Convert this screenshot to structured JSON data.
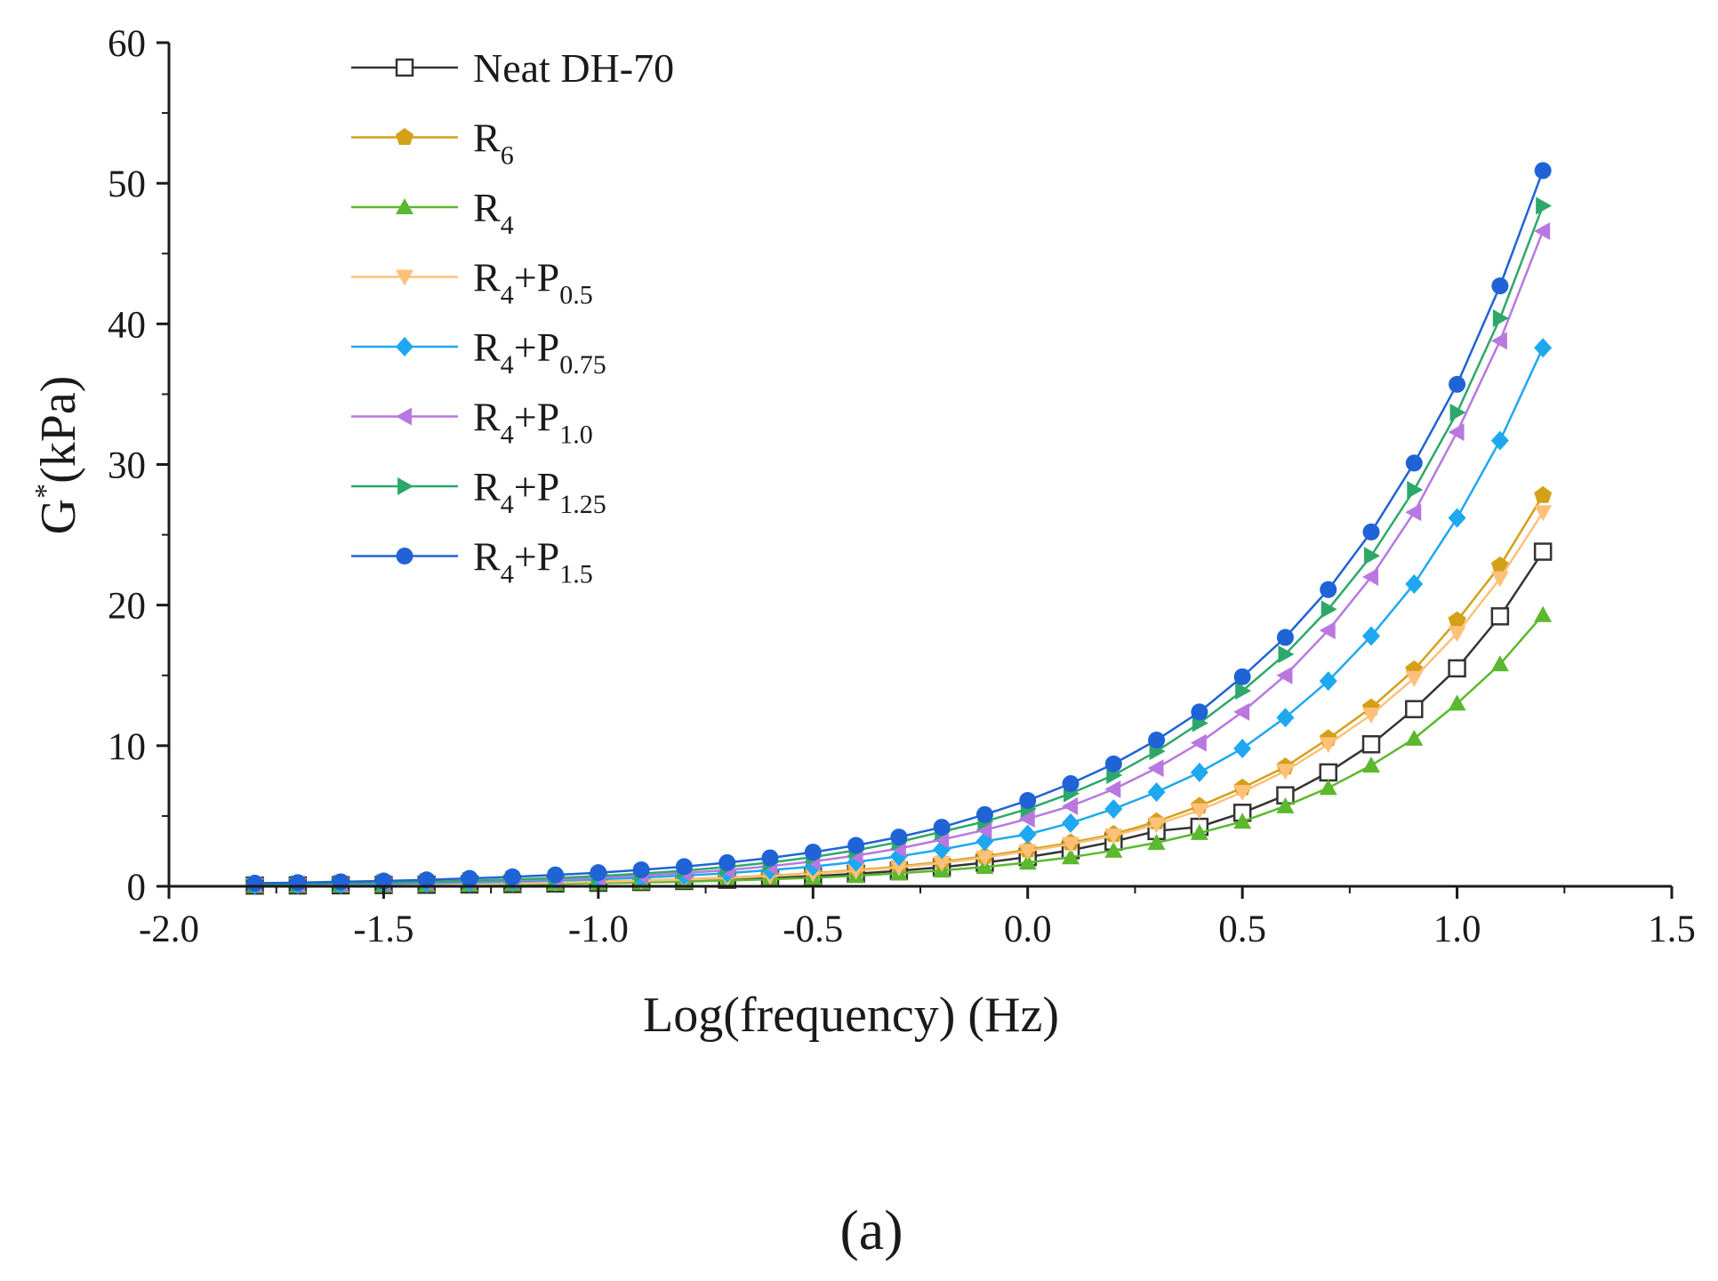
{
  "chart_data": {
    "type": "line",
    "xlabel": "Log(frequency) (Hz)",
    "ylabel": "G* (kPa)",
    "ylabel_parts": {
      "base": "G",
      "sup": "*",
      "unit": "(kPa)"
    },
    "xlim": [
      -2.0,
      1.5
    ],
    "ylim": [
      0,
      60
    ],
    "x_ticks": [
      -2.0,
      -1.5,
      -1.0,
      -0.5,
      0.0,
      0.5,
      1.0,
      1.5
    ],
    "x_tick_labels": [
      "-2.0",
      "-1.5",
      "-1.0",
      "-0.5",
      "0.0",
      "0.5",
      "1.0",
      "1.5"
    ],
    "y_ticks": [
      0,
      10,
      20,
      30,
      40,
      50,
      60
    ],
    "y_tick_labels": [
      "0",
      "10",
      "20",
      "30",
      "40",
      "50",
      "60"
    ],
    "grid": false,
    "legend_position": "top-left",
    "panel_label": "(a)",
    "x": [
      -1.8,
      -1.7,
      -1.6,
      -1.5,
      -1.4,
      -1.3,
      -1.2,
      -1.1,
      -1.0,
      -0.9,
      -0.8,
      -0.7,
      -0.6,
      -0.5,
      -0.4,
      -0.3,
      -0.2,
      -0.1,
      0.0,
      0.1,
      0.2,
      0.3,
      0.4,
      0.5,
      0.6,
      0.7,
      0.8,
      0.9,
      1.0,
      1.1,
      1.2
    ],
    "series": [
      {
        "name": "Neat DH-70",
        "label_base": "Neat DH-70",
        "label_sub1": "",
        "label_mid": "",
        "label_sub2": "",
        "color": "#333333",
        "marker": "square-open",
        "values": [
          0.05,
          0.06,
          0.07,
          0.09,
          0.11,
          0.13,
          0.16,
          0.2,
          0.25,
          0.31,
          0.38,
          0.47,
          0.58,
          0.72,
          0.89,
          1.1,
          1.36,
          1.68,
          2.08,
          2.57,
          3.18,
          3.93,
          4.23,
          5.23,
          6.47,
          8.1,
          10.1,
          12.6,
          15.5,
          19.2,
          23.8
        ]
      },
      {
        "name": "R6",
        "label_base": "R",
        "label_sub1": "6",
        "label_mid": "",
        "label_sub2": "",
        "color": "#d4a017",
        "marker": "pentagon",
        "values": [
          0.07,
          0.08,
          0.1,
          0.12,
          0.15,
          0.18,
          0.22,
          0.27,
          0.33,
          0.41,
          0.5,
          0.62,
          0.76,
          0.93,
          1.15,
          1.41,
          1.74,
          2.14,
          2.6,
          3.1,
          3.7,
          4.6,
          5.7,
          7.0,
          8.5,
          10.5,
          12.7,
          15.4,
          18.9,
          22.8,
          27.8
        ]
      },
      {
        "name": "R4",
        "label_base": "R",
        "label_sub1": "4",
        "label_mid": "",
        "label_sub2": "",
        "color": "#5cb82e",
        "marker": "triangle-up",
        "values": [
          0.04,
          0.05,
          0.06,
          0.08,
          0.1,
          0.12,
          0.15,
          0.18,
          0.22,
          0.27,
          0.33,
          0.41,
          0.5,
          0.61,
          0.75,
          0.92,
          1.13,
          1.38,
          1.69,
          2.07,
          2.54,
          3.1,
          3.8,
          4.6,
          5.7,
          7.0,
          8.6,
          10.5,
          13.0,
          15.8,
          19.3
        ]
      },
      {
        "name": "R4+P0.5",
        "label_base": "R",
        "label_sub1": "4",
        "label_mid": "+P",
        "label_sub2": "0.5",
        "color": "#ffc07a",
        "marker": "triangle-down",
        "values": [
          0.06,
          0.07,
          0.09,
          0.11,
          0.14,
          0.17,
          0.21,
          0.26,
          0.32,
          0.39,
          0.48,
          0.59,
          0.73,
          0.9,
          1.1,
          1.35,
          1.66,
          2.04,
          2.5,
          3.0,
          3.6,
          4.4,
          5.4,
          6.7,
          8.2,
          10.1,
          12.2,
          14.8,
          18.0,
          21.9,
          26.6
        ]
      },
      {
        "name": "R4+P0.75",
        "label_base": "R",
        "label_sub1": "4",
        "label_mid": "+P",
        "label_sub2": "0.75",
        "color": "#1ea8f0",
        "marker": "diamond",
        "values": [
          0.1,
          0.12,
          0.15,
          0.18,
          0.22,
          0.27,
          0.33,
          0.41,
          0.5,
          0.62,
          0.76,
          0.93,
          1.15,
          1.41,
          1.73,
          2.13,
          2.62,
          3.2,
          3.7,
          4.5,
          5.5,
          6.7,
          8.1,
          9.8,
          12.0,
          14.6,
          17.8,
          21.5,
          26.2,
          31.7,
          38.3
        ]
      },
      {
        "name": "R4+P1.0",
        "label_base": "R",
        "label_sub1": "4",
        "label_mid": "+P",
        "label_sub2": "1.0",
        "color": "#b878e0",
        "marker": "triangle-left",
        "values": [
          0.12,
          0.15,
          0.18,
          0.22,
          0.27,
          0.33,
          0.41,
          0.5,
          0.62,
          0.76,
          0.94,
          1.16,
          1.43,
          1.77,
          2.18,
          2.69,
          3.32,
          4.0,
          4.8,
          5.7,
          6.9,
          8.4,
          10.2,
          12.4,
          15.0,
          18.2,
          22.0,
          26.6,
          32.3,
          38.8,
          46.6
        ]
      },
      {
        "name": "R4+P1.25",
        "label_base": "R",
        "label_sub1": "4",
        "label_mid": "+P",
        "label_sub2": "1.25",
        "color": "#2ea86a",
        "marker": "triangle-right",
        "values": [
          0.14,
          0.17,
          0.21,
          0.26,
          0.32,
          0.39,
          0.48,
          0.59,
          0.73,
          0.9,
          1.11,
          1.37,
          1.69,
          2.08,
          2.56,
          3.15,
          3.88,
          4.6,
          5.5,
          6.6,
          7.9,
          9.6,
          11.6,
          13.9,
          16.5,
          19.7,
          23.5,
          28.2,
          33.7,
          40.4,
          48.4
        ]
      },
      {
        "name": "R4+P1.5",
        "label_base": "R",
        "label_sub1": "4",
        "label_mid": "+P",
        "label_sub2": "1.5",
        "color": "#1f63d6",
        "marker": "circle",
        "values": [
          0.22,
          0.26,
          0.32,
          0.38,
          0.46,
          0.56,
          0.67,
          0.81,
          0.97,
          1.17,
          1.4,
          1.68,
          2.02,
          2.43,
          2.91,
          3.5,
          4.2,
          5.1,
          6.1,
          7.3,
          8.7,
          10.4,
          12.4,
          14.9,
          17.7,
          21.1,
          25.2,
          30.1,
          35.7,
          42.7,
          50.9
        ]
      }
    ]
  }
}
